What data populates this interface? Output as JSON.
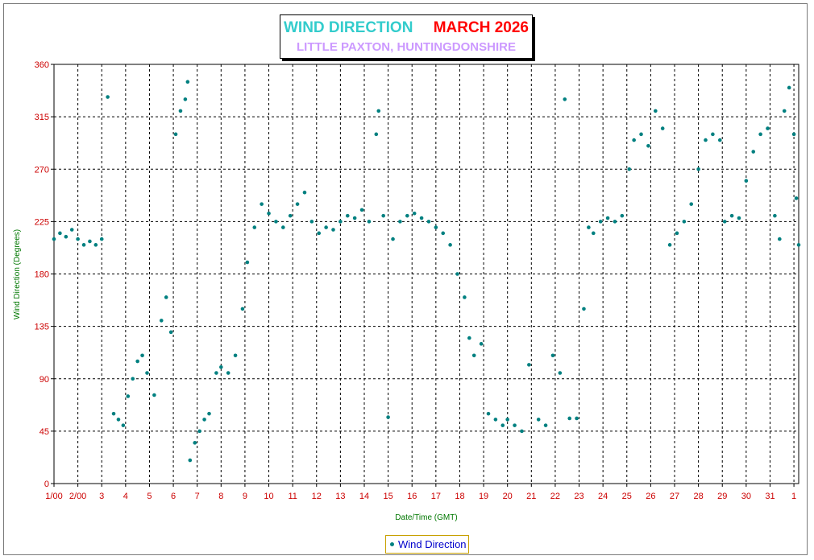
{
  "title": {
    "main": "WIND DIRECTION",
    "month": "MARCH 2026",
    "subtitle": "LITTLE PAXTON, HUNTINGDONSHIRE"
  },
  "legend": {
    "label": "Wind Direction"
  },
  "colors": {
    "series": "#008080",
    "tick": "#cc0000",
    "axis_title": "#007700",
    "title_main": "#33cccc",
    "title_month": "#ff0000",
    "subtitle": "#cc99ff"
  },
  "chart_data": {
    "type": "scatter",
    "title": "WIND DIRECTION MARCH 2026",
    "subtitle": "LITTLE PAXTON, HUNTINGDONSHIRE",
    "xlabel": "Date/Time (GMT)",
    "ylabel": "Wind Direction (Degrees)",
    "ylim": [
      0,
      360
    ],
    "yticks": [
      0,
      45,
      90,
      135,
      180,
      225,
      270,
      315,
      360
    ],
    "xlim": [
      1,
      32.2
    ],
    "xticks": [
      1,
      2,
      3,
      4,
      5,
      6,
      7,
      8,
      9,
      10,
      11,
      12,
      13,
      14,
      15,
      16,
      17,
      18,
      19,
      20,
      21,
      22,
      23,
      24,
      25,
      26,
      27,
      28,
      29,
      30,
      31,
      32
    ],
    "xtick_labels": [
      "1/00",
      "2/00",
      "3",
      "4",
      "5",
      "6",
      "7",
      "8",
      "9",
      "10",
      "11",
      "12",
      "13",
      "14",
      "15",
      "16",
      "17",
      "18",
      "19",
      "20",
      "21",
      "22",
      "23",
      "24",
      "25",
      "26",
      "27",
      "28",
      "29",
      "30",
      "31",
      "1"
    ],
    "grid": true,
    "legend_position": "bottom-center",
    "series": [
      {
        "name": "Wind Direction",
        "points": [
          [
            1.0,
            210
          ],
          [
            1.25,
            215
          ],
          [
            1.5,
            212
          ],
          [
            1.75,
            218
          ],
          [
            2.0,
            210
          ],
          [
            2.25,
            205
          ],
          [
            2.5,
            208
          ],
          [
            2.75,
            205
          ],
          [
            3.0,
            210
          ],
          [
            3.25,
            332
          ],
          [
            3.5,
            60
          ],
          [
            3.7,
            55
          ],
          [
            3.9,
            50
          ],
          [
            4.1,
            75
          ],
          [
            4.3,
            90
          ],
          [
            4.5,
            105
          ],
          [
            4.7,
            110
          ],
          [
            4.9,
            95
          ],
          [
            5.2,
            76
          ],
          [
            5.5,
            140
          ],
          [
            5.7,
            160
          ],
          [
            5.9,
            130
          ],
          [
            6.1,
            300
          ],
          [
            6.3,
            320
          ],
          [
            6.5,
            330
          ],
          [
            6.6,
            345
          ],
          [
            6.7,
            20
          ],
          [
            6.9,
            35
          ],
          [
            7.1,
            45
          ],
          [
            7.3,
            55
          ],
          [
            7.5,
            60
          ],
          [
            7.8,
            95
          ],
          [
            8.0,
            100
          ],
          [
            8.3,
            95
          ],
          [
            8.6,
            110
          ],
          [
            8.9,
            150
          ],
          [
            9.1,
            190
          ],
          [
            9.4,
            220
          ],
          [
            9.7,
            240
          ],
          [
            10.0,
            232
          ],
          [
            10.3,
            225
          ],
          [
            10.6,
            220
          ],
          [
            10.9,
            230
          ],
          [
            11.2,
            240
          ],
          [
            11.5,
            250
          ],
          [
            11.8,
            225
          ],
          [
            12.1,
            215
          ],
          [
            12.4,
            220
          ],
          [
            12.7,
            218
          ],
          [
            13.0,
            225
          ],
          [
            13.3,
            230
          ],
          [
            13.6,
            228
          ],
          [
            13.9,
            235
          ],
          [
            14.2,
            225
          ],
          [
            14.5,
            300
          ],
          [
            14.6,
            320
          ],
          [
            14.8,
            230
          ],
          [
            15.0,
            57
          ],
          [
            15.2,
            210
          ],
          [
            15.5,
            225
          ],
          [
            15.8,
            230
          ],
          [
            16.1,
            232
          ],
          [
            16.4,
            228
          ],
          [
            16.7,
            225
          ],
          [
            17.0,
            220
          ],
          [
            17.3,
            215
          ],
          [
            17.6,
            205
          ],
          [
            17.9,
            180
          ],
          [
            18.2,
            160
          ],
          [
            18.4,
            125
          ],
          [
            18.6,
            110
          ],
          [
            18.9,
            120
          ],
          [
            19.2,
            60
          ],
          [
            19.5,
            55
          ],
          [
            19.8,
            50
          ],
          [
            20.0,
            55
          ],
          [
            20.3,
            50
          ],
          [
            20.6,
            45
          ],
          [
            20.9,
            102
          ],
          [
            21.3,
            55
          ],
          [
            21.6,
            50
          ],
          [
            21.9,
            110
          ],
          [
            22.2,
            95
          ],
          [
            22.4,
            330
          ],
          [
            22.6,
            56
          ],
          [
            22.9,
            56
          ],
          [
            23.2,
            150
          ],
          [
            23.4,
            220
          ],
          [
            23.6,
            215
          ],
          [
            23.9,
            225
          ],
          [
            24.2,
            228
          ],
          [
            24.5,
            225
          ],
          [
            24.8,
            230
          ],
          [
            25.1,
            270
          ],
          [
            25.3,
            295
          ],
          [
            25.6,
            300
          ],
          [
            25.9,
            290
          ],
          [
            26.2,
            320
          ],
          [
            26.5,
            305
          ],
          [
            26.8,
            205
          ],
          [
            27.1,
            215
          ],
          [
            27.4,
            225
          ],
          [
            27.7,
            240
          ],
          [
            28.0,
            270
          ],
          [
            28.3,
            295
          ],
          [
            28.6,
            300
          ],
          [
            28.9,
            295
          ],
          [
            29.1,
            225
          ],
          [
            29.4,
            230
          ],
          [
            29.7,
            228
          ],
          [
            30.0,
            260
          ],
          [
            30.3,
            285
          ],
          [
            30.6,
            300
          ],
          [
            30.9,
            305
          ],
          [
            31.2,
            230
          ],
          [
            31.4,
            210
          ],
          [
            31.6,
            320
          ],
          [
            31.8,
            340
          ],
          [
            32.0,
            300
          ],
          [
            32.1,
            245
          ],
          [
            32.2,
            205
          ]
        ]
      }
    ]
  }
}
